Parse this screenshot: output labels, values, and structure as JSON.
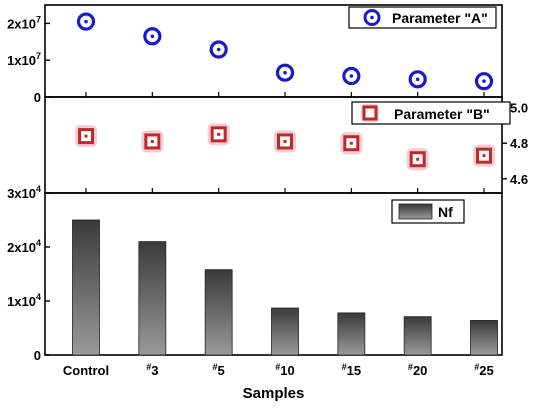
{
  "chart_data": {
    "type": "multi-panel",
    "categories": [
      "Control",
      "#3",
      "#5",
      "#10",
      "#15",
      "#20",
      "#25"
    ],
    "category_display": [
      {
        "sup": "",
        "main": "Control"
      },
      {
        "sup": "#",
        "main": "3"
      },
      {
        "sup": "#",
        "main": "5"
      },
      {
        "sup": "#",
        "main": "10"
      },
      {
        "sup": "#",
        "main": "15"
      },
      {
        "sup": "#",
        "main": "20"
      },
      {
        "sup": "#",
        "main": "25"
      }
    ],
    "xlabel": "Samples",
    "panels": [
      {
        "type": "scatter",
        "series_name": "Parameter \"A\"",
        "values": [
          20500000,
          16500000,
          12900000,
          6600000,
          5700000,
          4800000,
          4300000
        ],
        "ylim": [
          0,
          25000000
        ],
        "yticks": [
          {
            "value": 0,
            "base": "0",
            "exp": ""
          },
          {
            "value": 10000000,
            "base": "1x10",
            "exp": "7"
          },
          {
            "value": 20000000,
            "base": "2x10",
            "exp": "7"
          }
        ],
        "axis_side": "left",
        "marker": "circle",
        "color": "#1a1acc"
      },
      {
        "type": "scatter",
        "series_name": "Parameter \"B\"",
        "values": [
          4.84,
          4.81,
          4.85,
          4.81,
          4.8,
          4.71,
          4.73
        ],
        "ylim": [
          4.52,
          5.06
        ],
        "yticks": [
          {
            "value": 4.6,
            "base": "4.6",
            "exp": ""
          },
          {
            "value": 4.8,
            "base": "4.8",
            "exp": ""
          },
          {
            "value": 5.0,
            "base": "5.0",
            "exp": ""
          }
        ],
        "axis_side": "right",
        "marker": "square",
        "color": "#c0282a",
        "halo_color": "#f2b8c0"
      },
      {
        "type": "bar",
        "series_name": "Nf",
        "values": [
          25000,
          21000,
          15800,
          8700,
          7800,
          7100,
          6400
        ],
        "ylim": [
          0,
          30000
        ],
        "yticks": [
          {
            "value": 0,
            "base": "0",
            "exp": ""
          },
          {
            "value": 10000,
            "base": "1x10",
            "exp": "4"
          },
          {
            "value": 20000,
            "base": "2x10",
            "exp": "4"
          },
          {
            "value": 30000,
            "base": "3x10",
            "exp": "4"
          }
        ],
        "axis_side": "left",
        "bar_color_top": "#3a3a3a",
        "bar_color_bottom": "#9a9a9a"
      }
    ],
    "legend_position": "top-right",
    "grid": false
  }
}
